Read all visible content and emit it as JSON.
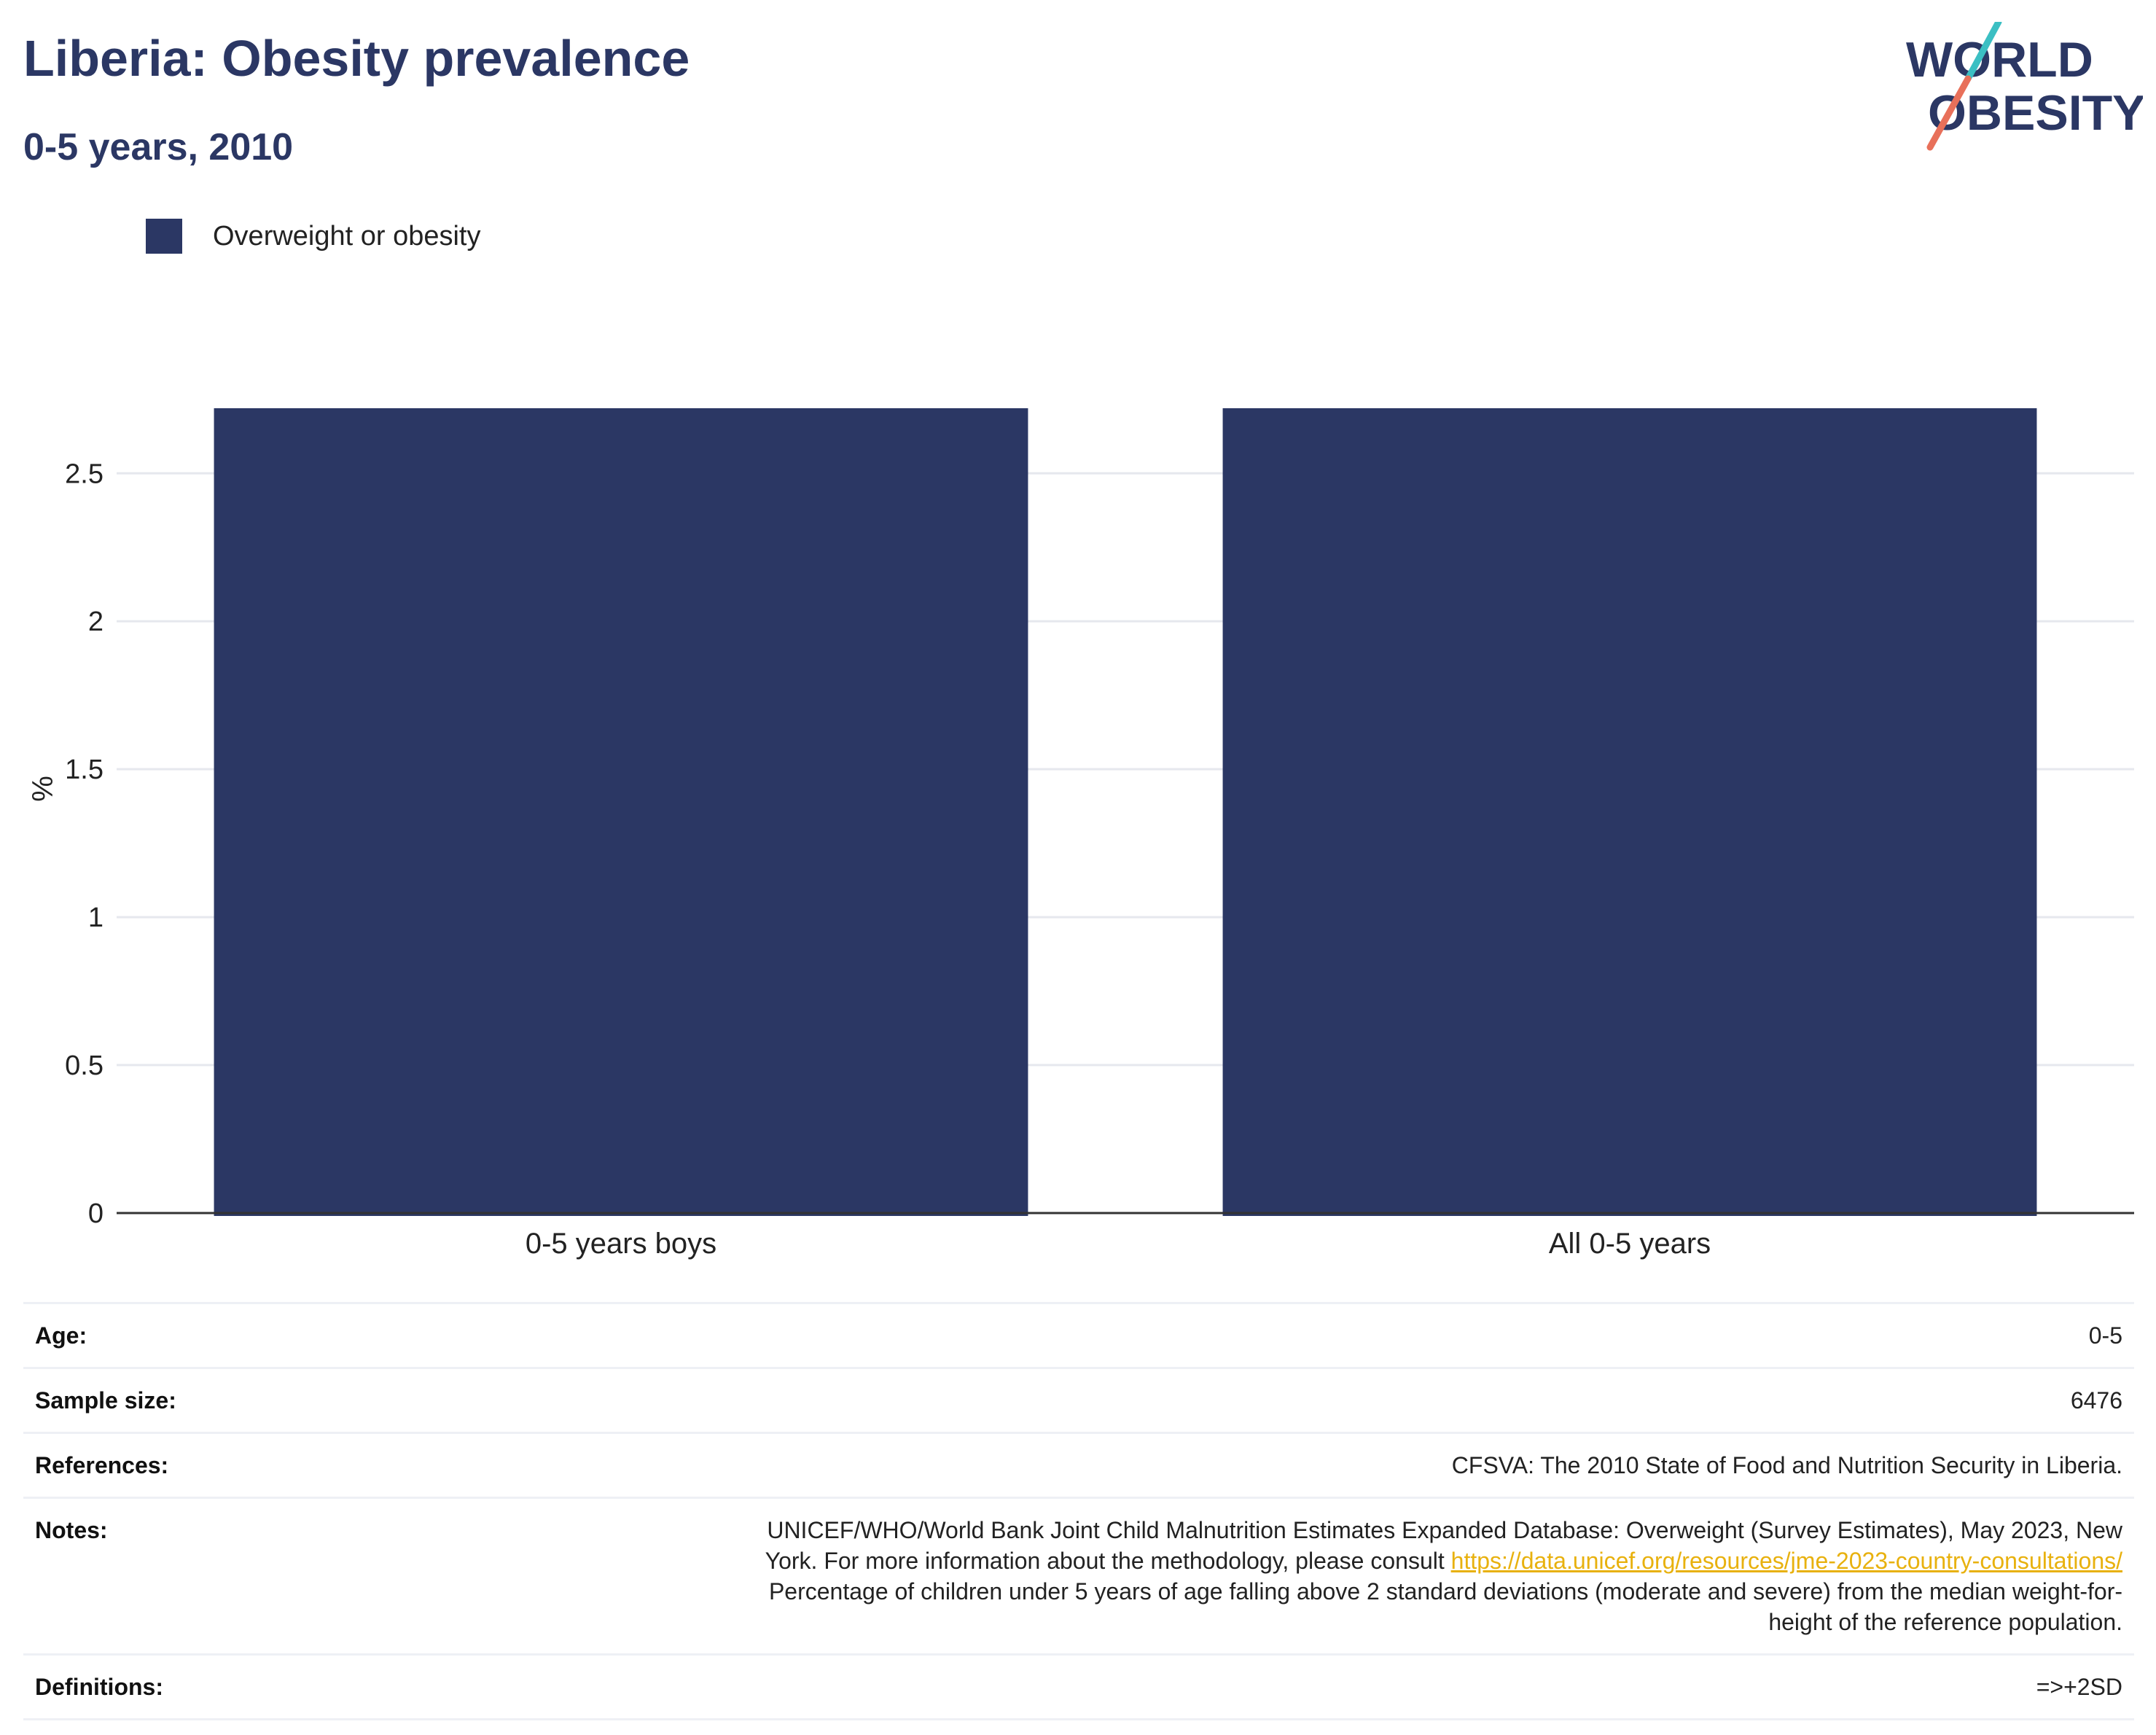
{
  "header": {
    "title": "Liberia: Obesity prevalence",
    "subtitle": "0-5 years, 2010"
  },
  "logo": {
    "line1": "WORLD",
    "line2": "OBESITY",
    "colors": {
      "text": "#2b3764",
      "slash_top": "#3bbfc3",
      "slash_bottom": "#e8705a"
    }
  },
  "legend": {
    "items": [
      {
        "label": "Overweight or obesity",
        "color": "#2b3764"
      }
    ]
  },
  "chart_data": {
    "type": "bar",
    "title": "Liberia: Obesity prevalence",
    "subtitle": "0-5 years, 2010",
    "categories": [
      "0-5 years boys",
      "All 0-5 years"
    ],
    "series": [
      {
        "name": "Overweight or obesity",
        "color": "#2b3764",
        "values": [
          2.72,
          2.72
        ]
      }
    ],
    "xlabel": "",
    "ylabel": "%",
    "ylim": [
      0,
      2.72
    ],
    "yticks": [
      0,
      0.5,
      1,
      1.5,
      2,
      2.5
    ],
    "ytick_labels": [
      "0",
      "0.5",
      "1",
      "1.5",
      "2",
      "2.5"
    ],
    "grid": true,
    "legend_position": "top-left"
  },
  "info": {
    "age": {
      "label": "Age:",
      "value": "0-5"
    },
    "sample_size": {
      "label": "Sample size:",
      "value": "6476"
    },
    "references": {
      "label": "References:",
      "value": "CFSVA: The 2010 State of Food and Nutrition Security in Liberia."
    },
    "notes": {
      "label": "Notes:",
      "line1": "UNICEF/WHO/World Bank Joint Child Malnutrition Estimates Expanded Database: Overweight (Survey Estimates), May 2023, New",
      "line2_prefix": "York. For more information about the methodology, please consult ",
      "link": "https://data.unicef.org/resources/jme-2023-country-consultations/",
      "line3": "Percentage of children under 5 years of age falling above 2 standard deviations (moderate and severe) from the median weight-for-",
      "line4": "height of the reference population."
    },
    "definitions": {
      "label": "Definitions:",
      "value": "=>+2SD"
    }
  }
}
